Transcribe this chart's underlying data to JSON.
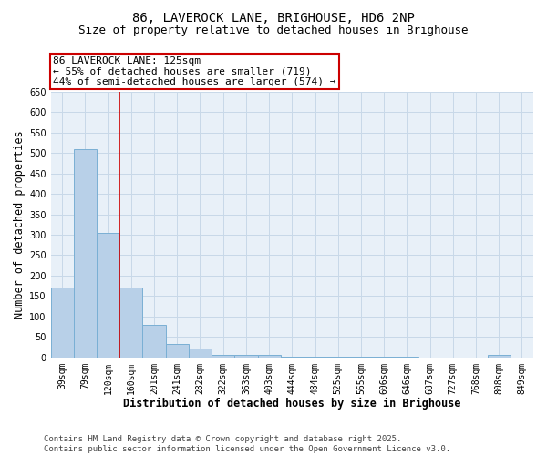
{
  "title": "86, LAVEROCK LANE, BRIGHOUSE, HD6 2NP",
  "subtitle": "Size of property relative to detached houses in Brighouse",
  "xlabel": "Distribution of detached houses by size in Brighouse",
  "ylabel": "Number of detached properties",
  "categories": [
    "39sqm",
    "79sqm",
    "120sqm",
    "160sqm",
    "201sqm",
    "241sqm",
    "282sqm",
    "322sqm",
    "363sqm",
    "403sqm",
    "444sqm",
    "484sqm",
    "525sqm",
    "565sqm",
    "606sqm",
    "646sqm",
    "687sqm",
    "727sqm",
    "768sqm",
    "808sqm",
    "849sqm"
  ],
  "values": [
    170,
    510,
    305,
    170,
    80,
    33,
    22,
    5,
    5,
    5,
    2,
    2,
    1,
    1,
    1,
    1,
    0,
    0,
    0,
    5,
    0
  ],
  "bar_color": "#b8d0e8",
  "bar_edge_color": "#7aafd4",
  "vline_x_index": 2,
  "vline_color": "#cc0000",
  "annotation_text": "86 LAVEROCK LANE: 125sqm\n← 55% of detached houses are smaller (719)\n44% of semi-detached houses are larger (574) →",
  "annotation_box_color": "#ffffff",
  "annotation_box_edge_color": "#cc0000",
  "ylim": [
    0,
    650
  ],
  "yticks": [
    0,
    50,
    100,
    150,
    200,
    250,
    300,
    350,
    400,
    450,
    500,
    550,
    600,
    650
  ],
  "grid_color": "#c8d8e8",
  "bg_color": "#e8f0f8",
  "footer_text": "Contains HM Land Registry data © Crown copyright and database right 2025.\nContains public sector information licensed under the Open Government Licence v3.0.",
  "title_fontsize": 10,
  "subtitle_fontsize": 9,
  "axis_label_fontsize": 8.5,
  "tick_fontsize": 7,
  "annotation_fontsize": 8,
  "footer_fontsize": 6.5
}
